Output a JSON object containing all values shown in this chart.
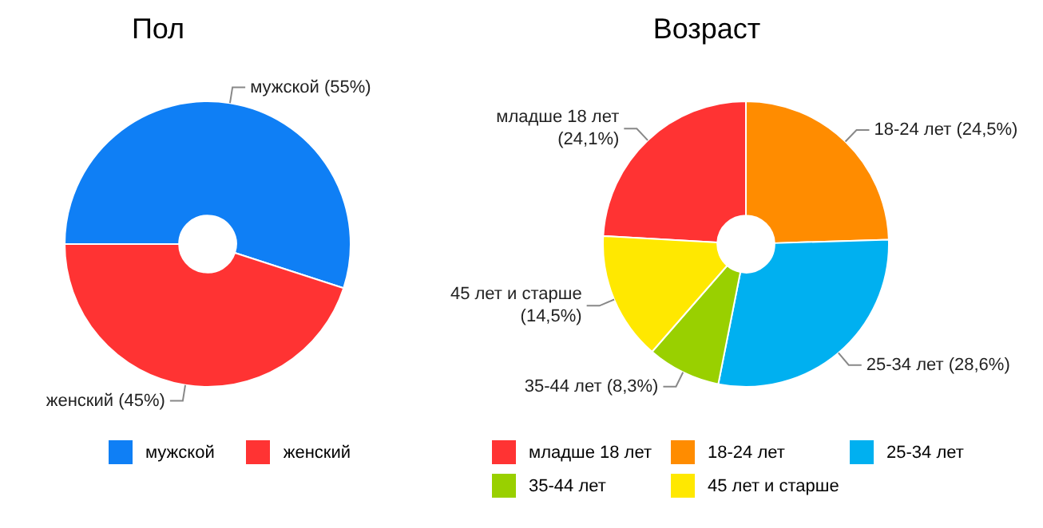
{
  "chart_data": [
    {
      "type": "donut",
      "title": "Пол",
      "categories": [
        "мужской",
        "женский"
      ],
      "values": [
        55,
        45
      ],
      "colors": [
        "#0f7ff5",
        "#ff3333"
      ],
      "value_labels": [
        "(55%)",
        "(45%)"
      ],
      "legend": "bottom"
    },
    {
      "type": "donut",
      "title": "Возраст",
      "categories": [
        "младше 18 лет",
        "18-24 лет",
        "25-34 лет",
        "35-44 лет",
        "45 лет и старше"
      ],
      "values": [
        24.1,
        24.5,
        28.6,
        8.3,
        14.5
      ],
      "colors": [
        "#ff3333",
        "#ff8c00",
        "#00b0f0",
        "#99d000",
        "#ffe800"
      ],
      "value_labels": [
        "(24,1%)",
        "(24,5%)",
        "(28,6%)",
        "(8,3%)",
        "(14,5%)"
      ],
      "legend": "bottom"
    }
  ]
}
